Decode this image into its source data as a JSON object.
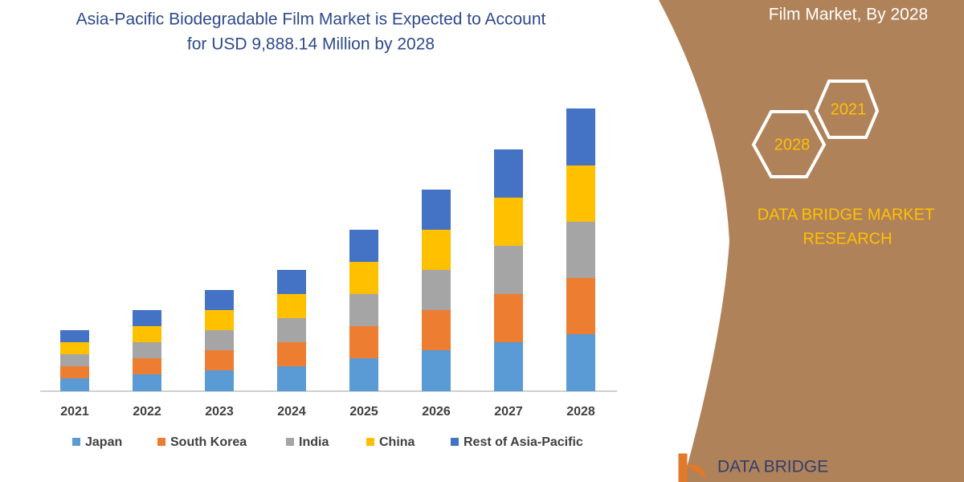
{
  "chart_data": {
    "type": "stacked-bar",
    "title": [
      "Asia-Pacific Biodegradable Film Market is Expected to Account",
      "for USD 9,888.14 Million by 2028"
    ],
    "categories": [
      "2021",
      "2022",
      "2023",
      "2024",
      "2025",
      "2026",
      "2027",
      "2028"
    ],
    "series": [
      {
        "name": "Japan",
        "color": "#5b9bd5",
        "values": [
          16,
          21,
          26,
          31,
          41,
          51,
          61,
          71
        ]
      },
      {
        "name": "South Korea",
        "color": "#ed7d31",
        "values": [
          15,
          20,
          25,
          30,
          40,
          50,
          60,
          70
        ]
      },
      {
        "name": "India",
        "color": "#a5a5a5",
        "values": [
          15,
          20,
          25,
          30,
          40,
          50,
          60,
          70
        ]
      },
      {
        "name": "China",
        "color": "#ffc000",
        "values": [
          15,
          20,
          25,
          30,
          40,
          50,
          60,
          70
        ]
      },
      {
        "name": "Rest of Asia-Pacific",
        "color": "#4472c4",
        "values": [
          15,
          20,
          25,
          30,
          40,
          50,
          60,
          71
        ]
      }
    ],
    "ylim": [
      0,
      360
    ]
  },
  "side_panel": {
    "heading": "Film Market, By 2028",
    "hexagons": [
      "2021",
      "2028"
    ],
    "brand": [
      "DATA BRIDGE MARKET",
      "RESEARCH"
    ],
    "logo": "DATA BRIDGE"
  }
}
